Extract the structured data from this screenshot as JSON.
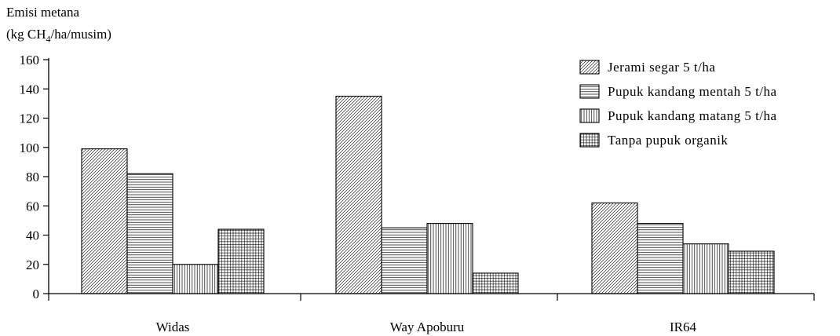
{
  "chart_data": {
    "type": "bar",
    "ylabel_line1": "Emisi metana",
    "ylabel_line2_prefix": "(kg CH",
    "ylabel_line2_sub": "4",
    "ylabel_line2_suffix": "/ha/musim)",
    "ylim": [
      0,
      160
    ],
    "yticks": [
      "0",
      "20",
      "40",
      "60",
      "80",
      "100",
      "120",
      "140",
      "160"
    ],
    "categories": [
      "Widas",
      "Way Apoburu",
      "IR64"
    ],
    "series": [
      {
        "name": "Jerami segar 5 t/ha",
        "pattern": "diagonal",
        "values": [
          99,
          135,
          62
        ]
      },
      {
        "name": "Pupuk kandang mentah 5 t/ha",
        "pattern": "horizontal",
        "values": [
          82,
          45,
          48
        ]
      },
      {
        "name": "Pupuk kandang matang 5 t/ha",
        "pattern": "vertical",
        "values": [
          20,
          48,
          34
        ]
      },
      {
        "name": "Tanpa pupuk organik",
        "pattern": "grid",
        "values": [
          44,
          14,
          29
        ]
      }
    ],
    "legend_position": "top-right",
    "grid": false
  }
}
